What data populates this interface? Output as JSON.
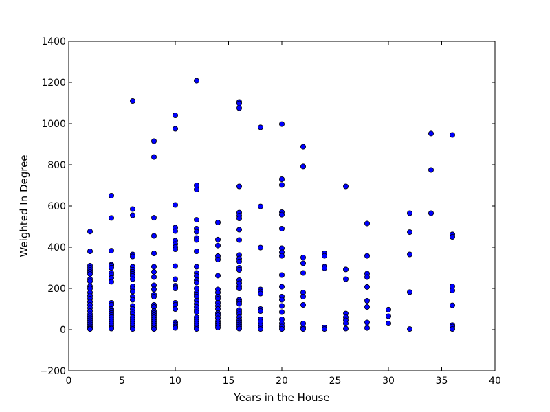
{
  "chart_data": {
    "type": "scatter",
    "title": "",
    "xlabel": "Years in the House",
    "ylabel": "Weighted In Degree",
    "xlim": [
      0,
      40
    ],
    "ylim": [
      -200,
      1400
    ],
    "xticks": [
      "0",
      "5",
      "10",
      "15",
      "20",
      "25",
      "30",
      "35",
      "40"
    ],
    "yticks": [
      "−200",
      "0",
      "200",
      "400",
      "600",
      "800",
      "1000",
      "1200",
      "1400"
    ],
    "grid": false,
    "legend": "none",
    "marker_color": "#0000ff",
    "points": [
      [
        2,
        476
      ],
      [
        2,
        380
      ],
      [
        2,
        310
      ],
      [
        2,
        300
      ],
      [
        2,
        290
      ],
      [
        2,
        280
      ],
      [
        2,
        270
      ],
      [
        2,
        245
      ],
      [
        2,
        235
      ],
      [
        2,
        210
      ],
      [
        2,
        200
      ],
      [
        2,
        180
      ],
      [
        2,
        165
      ],
      [
        2,
        150
      ],
      [
        2,
        135
      ],
      [
        2,
        120
      ],
      [
        2,
        105
      ],
      [
        2,
        90
      ],
      [
        2,
        75
      ],
      [
        2,
        65
      ],
      [
        2,
        55
      ],
      [
        2,
        45
      ],
      [
        2,
        35
      ],
      [
        2,
        25
      ],
      [
        2,
        15
      ],
      [
        2,
        8
      ],
      [
        2,
        3
      ],
      [
        4,
        650
      ],
      [
        4,
        542
      ],
      [
        4,
        383
      ],
      [
        4,
        315
      ],
      [
        4,
        310
      ],
      [
        4,
        300
      ],
      [
        4,
        275
      ],
      [
        4,
        265
      ],
      [
        4,
        250
      ],
      [
        4,
        232
      ],
      [
        4,
        130
      ],
      [
        4,
        120
      ],
      [
        4,
        100
      ],
      [
        4,
        90
      ],
      [
        4,
        80
      ],
      [
        4,
        70
      ],
      [
        4,
        60
      ],
      [
        4,
        50
      ],
      [
        4,
        40
      ],
      [
        4,
        30
      ],
      [
        4,
        20
      ],
      [
        4,
        10
      ],
      [
        4,
        5
      ],
      [
        6,
        1110
      ],
      [
        6,
        585
      ],
      [
        6,
        555
      ],
      [
        6,
        365
      ],
      [
        6,
        355
      ],
      [
        6,
        305
      ],
      [
        6,
        290
      ],
      [
        6,
        280
      ],
      [
        6,
        270
      ],
      [
        6,
        260
      ],
      [
        6,
        245
      ],
      [
        6,
        210
      ],
      [
        6,
        200
      ],
      [
        6,
        185
      ],
      [
        6,
        160
      ],
      [
        6,
        145
      ],
      [
        6,
        115
      ],
      [
        6,
        100
      ],
      [
        6,
        85
      ],
      [
        6,
        75
      ],
      [
        6,
        60
      ],
      [
        6,
        50
      ],
      [
        6,
        40
      ],
      [
        6,
        30
      ],
      [
        6,
        20
      ],
      [
        6,
        10
      ],
      [
        6,
        3
      ],
      [
        8,
        915
      ],
      [
        8,
        838
      ],
      [
        8,
        543
      ],
      [
        8,
        455
      ],
      [
        8,
        370
      ],
      [
        8,
        305
      ],
      [
        8,
        280
      ],
      [
        8,
        255
      ],
      [
        8,
        215
      ],
      [
        8,
        195
      ],
      [
        8,
        170
      ],
      [
        8,
        160
      ],
      [
        8,
        120
      ],
      [
        8,
        110
      ],
      [
        8,
        90
      ],
      [
        8,
        80
      ],
      [
        8,
        70
      ],
      [
        8,
        60
      ],
      [
        8,
        50
      ],
      [
        8,
        40
      ],
      [
        8,
        30
      ],
      [
        8,
        20
      ],
      [
        8,
        10
      ],
      [
        8,
        3
      ],
      [
        10,
        1040
      ],
      [
        10,
        975
      ],
      [
        10,
        605
      ],
      [
        10,
        495
      ],
      [
        10,
        478
      ],
      [
        10,
        432
      ],
      [
        10,
        415
      ],
      [
        10,
        400
      ],
      [
        10,
        390
      ],
      [
        10,
        308
      ],
      [
        10,
        245
      ],
      [
        10,
        213
      ],
      [
        10,
        205
      ],
      [
        10,
        200
      ],
      [
        10,
        130
      ],
      [
        10,
        120
      ],
      [
        10,
        100
      ],
      [
        10,
        35
      ],
      [
        10,
        25
      ],
      [
        10,
        15
      ],
      [
        10,
        8
      ],
      [
        12,
        1208
      ],
      [
        12,
        700
      ],
      [
        12,
        680
      ],
      [
        12,
        533
      ],
      [
        12,
        490
      ],
      [
        12,
        475
      ],
      [
        12,
        445
      ],
      [
        12,
        435
      ],
      [
        12,
        380
      ],
      [
        12,
        305
      ],
      [
        12,
        275
      ],
      [
        12,
        260
      ],
      [
        12,
        240
      ],
      [
        12,
        228
      ],
      [
        12,
        200
      ],
      [
        12,
        180
      ],
      [
        12,
        170
      ],
      [
        12,
        160
      ],
      [
        12,
        140
      ],
      [
        12,
        125
      ],
      [
        12,
        110
      ],
      [
        12,
        95
      ],
      [
        12,
        85
      ],
      [
        12,
        60
      ],
      [
        12,
        50
      ],
      [
        12,
        40
      ],
      [
        12,
        30
      ],
      [
        12,
        20
      ],
      [
        12,
        10
      ],
      [
        12,
        3
      ],
      [
        14,
        520
      ],
      [
        14,
        437
      ],
      [
        14,
        408
      ],
      [
        14,
        357
      ],
      [
        14,
        340
      ],
      [
        14,
        262
      ],
      [
        14,
        195
      ],
      [
        14,
        180
      ],
      [
        14,
        160
      ],
      [
        14,
        150
      ],
      [
        14,
        130
      ],
      [
        14,
        115
      ],
      [
        14,
        100
      ],
      [
        14,
        80
      ],
      [
        14,
        70
      ],
      [
        14,
        55
      ],
      [
        14,
        40
      ],
      [
        14,
        30
      ],
      [
        14,
        20
      ],
      [
        14,
        10
      ],
      [
        16,
        1105
      ],
      [
        16,
        1098
      ],
      [
        16,
        1075
      ],
      [
        16,
        695
      ],
      [
        16,
        568
      ],
      [
        16,
        553
      ],
      [
        16,
        540
      ],
      [
        16,
        485
      ],
      [
        16,
        435
      ],
      [
        16,
        362
      ],
      [
        16,
        345
      ],
      [
        16,
        330
      ],
      [
        16,
        300
      ],
      [
        16,
        290
      ],
      [
        16,
        240
      ],
      [
        16,
        225
      ],
      [
        16,
        210
      ],
      [
        16,
        200
      ],
      [
        16,
        145
      ],
      [
        16,
        135
      ],
      [
        16,
        125
      ],
      [
        16,
        95
      ],
      [
        16,
        85
      ],
      [
        16,
        75
      ],
      [
        16,
        60
      ],
      [
        16,
        45
      ],
      [
        16,
        35
      ],
      [
        16,
        25
      ],
      [
        16,
        15
      ],
      [
        16,
        5
      ],
      [
        18,
        982
      ],
      [
        18,
        598
      ],
      [
        18,
        398
      ],
      [
        18,
        195
      ],
      [
        18,
        185
      ],
      [
        18,
        175
      ],
      [
        18,
        100
      ],
      [
        18,
        90
      ],
      [
        18,
        50
      ],
      [
        18,
        40
      ],
      [
        18,
        20
      ],
      [
        18,
        10
      ],
      [
        18,
        3
      ],
      [
        20,
        998
      ],
      [
        20,
        730
      ],
      [
        20,
        702
      ],
      [
        20,
        570
      ],
      [
        20,
        558
      ],
      [
        20,
        490
      ],
      [
        20,
        395
      ],
      [
        20,
        375
      ],
      [
        20,
        358
      ],
      [
        20,
        265
      ],
      [
        20,
        208
      ],
      [
        20,
        160
      ],
      [
        20,
        145
      ],
      [
        20,
        115
      ],
      [
        20,
        85
      ],
      [
        20,
        50
      ],
      [
        20,
        30
      ],
      [
        20,
        15
      ],
      [
        20,
        3
      ],
      [
        22,
        888
      ],
      [
        22,
        792
      ],
      [
        22,
        350
      ],
      [
        22,
        322
      ],
      [
        22,
        275
      ],
      [
        22,
        180
      ],
      [
        22,
        160
      ],
      [
        22,
        120
      ],
      [
        22,
        30
      ],
      [
        22,
        10
      ],
      [
        22,
        3
      ],
      [
        24,
        370
      ],
      [
        24,
        358
      ],
      [
        24,
        305
      ],
      [
        24,
        298
      ],
      [
        24,
        10
      ],
      [
        24,
        3
      ],
      [
        26,
        695
      ],
      [
        26,
        292
      ],
      [
        26,
        245
      ],
      [
        26,
        78
      ],
      [
        26,
        60
      ],
      [
        26,
        45
      ],
      [
        26,
        30
      ],
      [
        26,
        5
      ],
      [
        28,
        515
      ],
      [
        28,
        358
      ],
      [
        28,
        272
      ],
      [
        28,
        255
      ],
      [
        28,
        207
      ],
      [
        28,
        140
      ],
      [
        28,
        110
      ],
      [
        28,
        35
      ],
      [
        28,
        8
      ],
      [
        30,
        97
      ],
      [
        30,
        65
      ],
      [
        30,
        30
      ],
      [
        32,
        565
      ],
      [
        32,
        473
      ],
      [
        32,
        365
      ],
      [
        32,
        182
      ],
      [
        32,
        3
      ],
      [
        34,
        952
      ],
      [
        34,
        775
      ],
      [
        34,
        565
      ],
      [
        36,
        945
      ],
      [
        36,
        462
      ],
      [
        36,
        450
      ],
      [
        36,
        210
      ],
      [
        36,
        190
      ],
      [
        36,
        118
      ],
      [
        36,
        22
      ],
      [
        36,
        15
      ],
      [
        36,
        3
      ]
    ]
  }
}
